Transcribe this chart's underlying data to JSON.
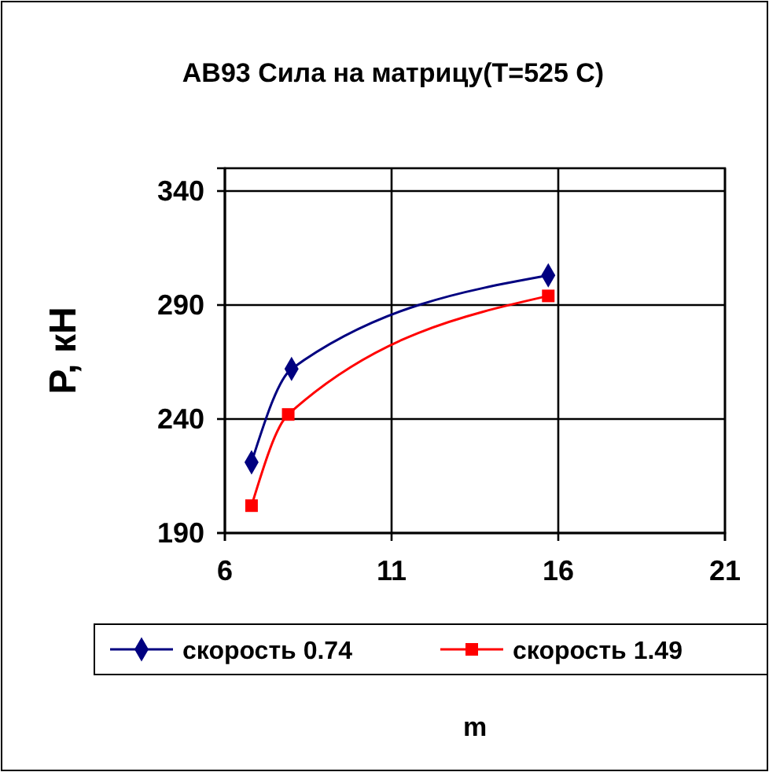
{
  "chart_data": {
    "type": "line",
    "title": "АВ93 Сила на матрицу(T=525 C)",
    "xlabel": "m",
    "ylabel": "P, кН",
    "xlim": [
      6,
      21
    ],
    "xticks": [
      6,
      11,
      16,
      21
    ],
    "ylim": [
      190,
      350
    ],
    "yticks": [
      190,
      240,
      290,
      340
    ],
    "grid": true,
    "legend": "bottom",
    "series": [
      {
        "name": "скорость 0.74",
        "color": "#000080",
        "marker": "diamond",
        "x": [
          6.8,
          8.0,
          15.7
        ],
        "values": [
          221,
          262,
          303
        ]
      },
      {
        "name": "скорость 1.49",
        "color": "#ff0000",
        "marker": "square",
        "x": [
          6.8,
          7.9,
          15.7
        ],
        "values": [
          202,
          242,
          294
        ]
      }
    ]
  }
}
